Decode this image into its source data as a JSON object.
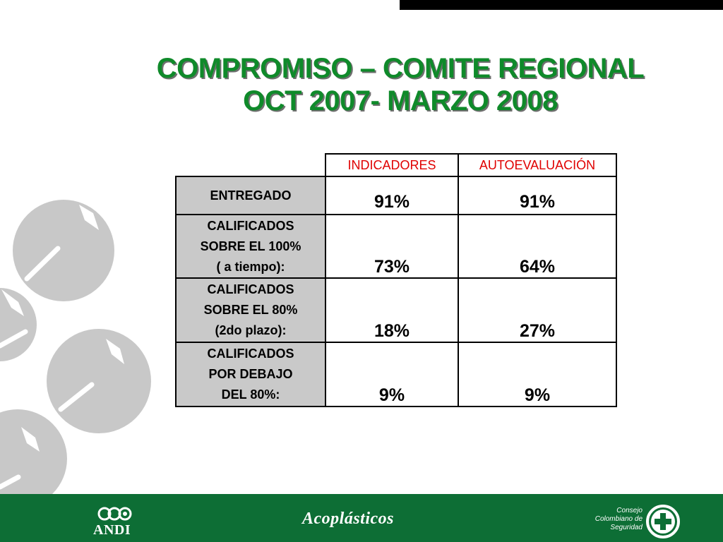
{
  "title": {
    "line1": "COMPROMISO – COMITE REGIONAL",
    "line2": "OCT 2007- MARZO 2008"
  },
  "table": {
    "headers": [
      "INDICADORES",
      "AUTOEVALUACIÓN"
    ],
    "rows": [
      {
        "label": [
          "ENTREGADO"
        ],
        "indicadores": "91%",
        "autoevaluacion": "91%"
      },
      {
        "label": [
          "CALIFICADOS",
          "SOBRE EL 100%",
          "( a tiempo):"
        ],
        "indicadores": "73%",
        "autoevaluacion": "64%"
      },
      {
        "label": [
          "CALIFICADOS",
          "SOBRE EL 80%",
          "(2do plazo):"
        ],
        "indicadores": "18%",
        "autoevaluacion": "27%"
      },
      {
        "label": [
          "CALIFICADOS",
          "POR DEBAJO",
          "DEL 80%:"
        ],
        "indicadores": "9%",
        "autoevaluacion": "9%"
      }
    ]
  },
  "footer": {
    "andi": "ANDI",
    "acoplasticos": "Acoplásticos",
    "ccs": [
      "Consejo",
      "Colombiano de",
      "Seguridad"
    ]
  },
  "colors": {
    "title_green": "#0f8a2a",
    "header_red": "#e00000",
    "label_gray": "#c9c9c9",
    "footer_green": "#0d6e35",
    "circle_gray": "#c8c8c8"
  },
  "icons": [
    "andi-logo-icon",
    "ccs-cross-icon",
    "decorative-circles"
  ]
}
